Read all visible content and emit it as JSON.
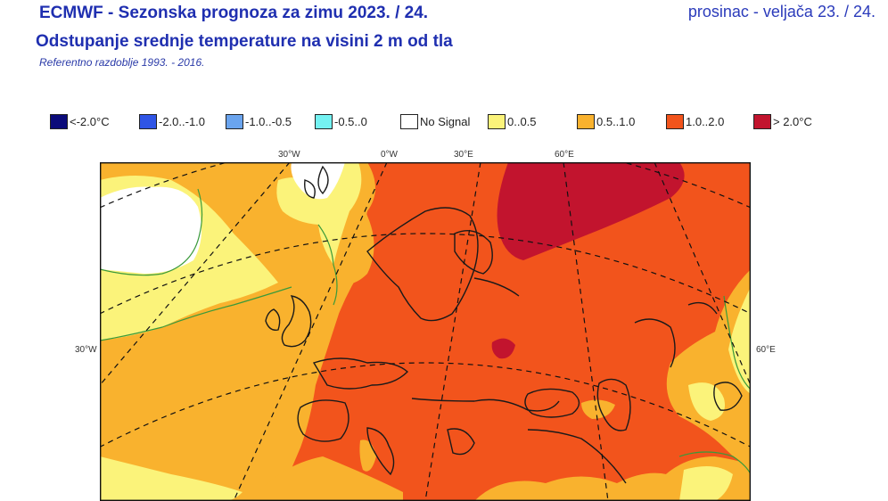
{
  "header": {
    "title_line1": "ECMWF - Sezonska prognoza za zimu 2023. / 24.",
    "title_line2": "Odstupanje srednje temperature na visini 2 m od tla",
    "reference": "Referentno razdoblje 1993. - 2016.",
    "period": "prosinac - veljača 23. / 24."
  },
  "legend": {
    "items": [
      {
        "label": "<-2.0°C",
        "color": "#0b0b7a"
      },
      {
        "label": "-2.0..-1.0",
        "color": "#2f55e6"
      },
      {
        "label": "-1.0..-0.5",
        "color": "#6aa4ee"
      },
      {
        "label": "-0.5..0",
        "color": "#74f2f2"
      },
      {
        "label": "No Signal",
        "color": "#ffffff"
      },
      {
        "label": "0..0.5",
        "color": "#fbf37a"
      },
      {
        "label": "0.5..1.0",
        "color": "#f9b22e"
      },
      {
        "label": "1.0..2.0",
        "color": "#f2541c"
      },
      {
        "label": "> 2.0°C",
        "color": "#c2142e"
      }
    ]
  },
  "map": {
    "graticule_labels": {
      "top": [
        "30°W",
        "0°W",
        "30°E",
        "60°E"
      ],
      "left": "30°W",
      "right": "60°E"
    }
  }
}
